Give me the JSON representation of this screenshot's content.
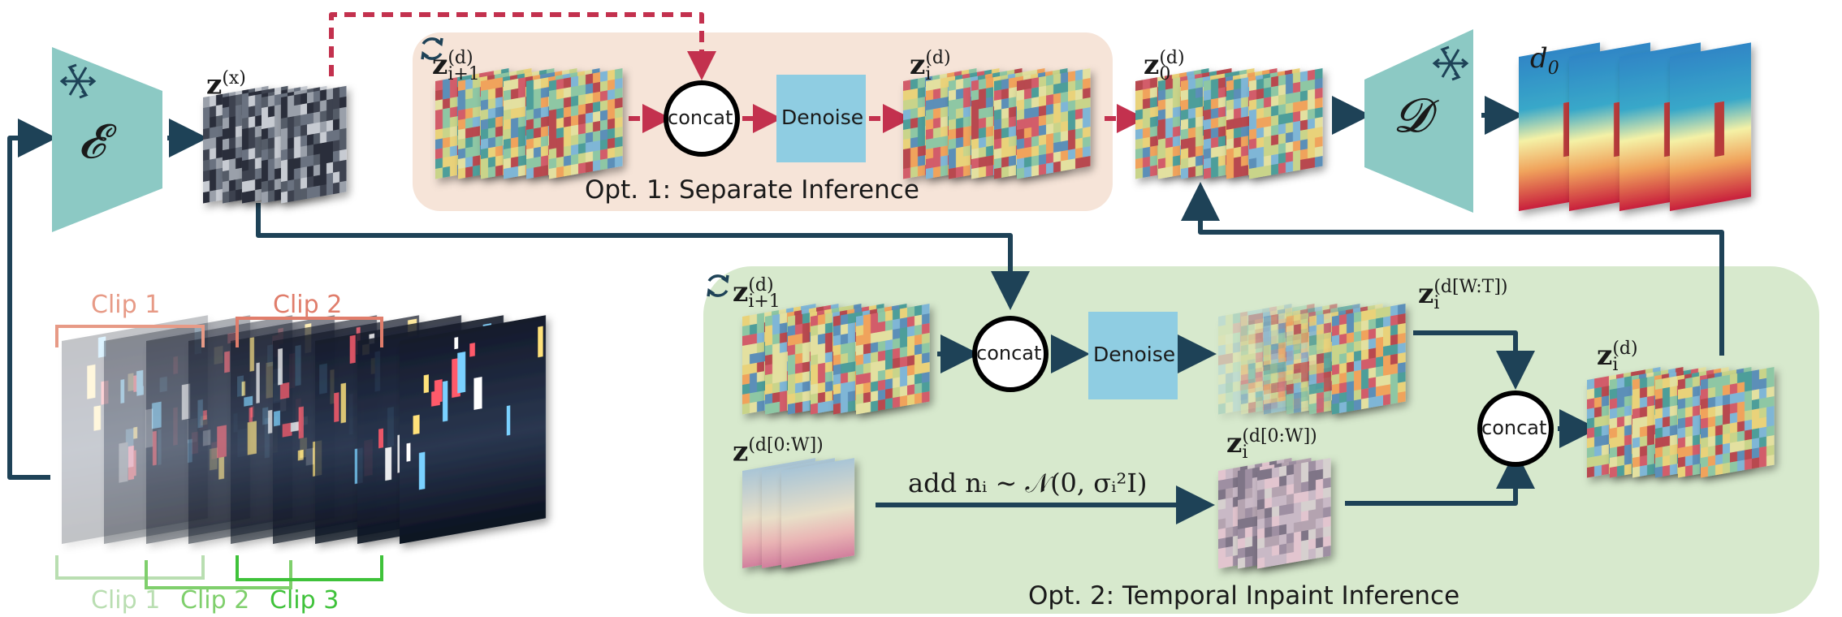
{
  "colors": {
    "encoder": "#8cc9c4",
    "denoise": "#8fcde2",
    "opt1_bg": "#f6e4d8",
    "opt2_bg": "#d7e9cd",
    "arrow_main": "#1e4257",
    "arrow_dashed": "#c3314e",
    "clip1": "#e79a86",
    "clip2": "#e07d6b",
    "clip1_low": "#b9deb1",
    "clip2_low": "#7fcf6c",
    "clip3_low": "#3fc23a"
  },
  "icons": {
    "encoder": "snowflake-icon",
    "decoder": "snowflake-icon",
    "loop": "refresh-icon"
  },
  "encoder": {
    "symbol": "𝓔"
  },
  "decoder": {
    "symbol": "𝓓"
  },
  "top": {
    "zx_base": "z",
    "zx_sup": "(x)",
    "z_in_base": "z",
    "z_in_sup": "(d)",
    "z_in_sub": "i+1",
    "concat": "concat",
    "denoise": "Denoise",
    "z_out_base": "z",
    "z_out_sup": "(d)",
    "z_out_sub": "i",
    "z0_base": "z",
    "z0_sup": "(d)",
    "z0_sub": "0",
    "d0_base": "d",
    "d0_sub": "0",
    "caption": "Opt. 1: Separate Inference"
  },
  "bottom": {
    "z_in_base": "z",
    "z_in_sup": "(d)",
    "z_in_sub": "i+1",
    "concat1": "concat",
    "denoise": "Denoise",
    "zwt_base": "z",
    "zwt_sup": "(d[W:T])",
    "zwt_sub": "i",
    "zout_base": "z",
    "zout_sup": "(d)",
    "zout_sub": "i",
    "z0w_base": "z",
    "z0w_sup": "(d[0:W])",
    "zi0w_base": "z",
    "zi0w_sup": "(d[0:W])",
    "zi0w_sub": "i",
    "noise_label": "add nᵢ ∼ 𝒩(0, σᵢ²I)",
    "concat2": "concat",
    "caption": "Opt. 2: Temporal Inpaint Inference"
  },
  "clips": {
    "clip1_top": "Clip 1",
    "clip2_top": "Clip 2",
    "clip1_bottom": "Clip 1",
    "clip2_bottom": "Clip 2",
    "clip3_bottom": "Clip 3"
  }
}
